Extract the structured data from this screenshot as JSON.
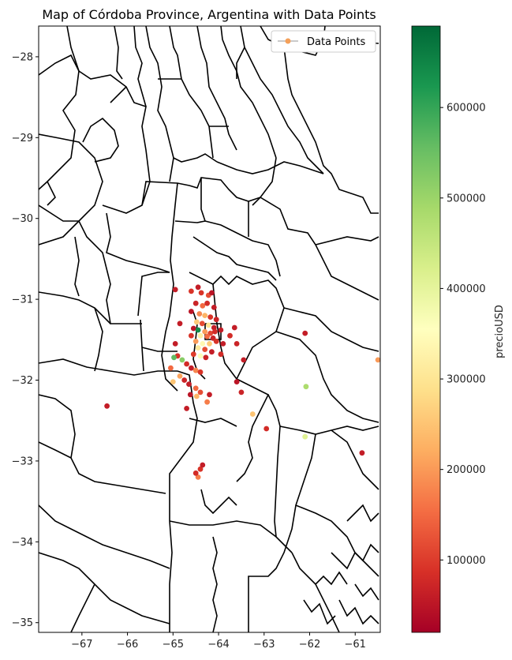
{
  "title": "Map of Córdoba Province, Argentina with Data Points",
  "legend": {
    "label": "Data Points",
    "marker_color": "#f4a05a",
    "placement": "upper right"
  },
  "colorbar": {
    "label": "precioUSD",
    "ticks": [
      "100000",
      "200000",
      "300000",
      "400000",
      "500000",
      "600000"
    ],
    "tick_values": [
      100000,
      200000,
      300000,
      400000,
      500000,
      600000
    ],
    "range": [
      20000,
      690000
    ],
    "colormap": "RdYlGn"
  },
  "axes": {
    "xlim": [
      -67.95,
      -60.45
    ],
    "ylim": [
      -35.12,
      -27.62
    ],
    "xticks": [
      "−67",
      "−66",
      "−65",
      "−64",
      "−63",
      "−62",
      "−61"
    ],
    "xtick_values": [
      -67,
      -66,
      -65,
      -64,
      -63,
      -62,
      -61
    ],
    "yticks": [
      "−28",
      "−29",
      "−30",
      "−31",
      "−32",
      "−33",
      "−34",
      "−35"
    ],
    "ytick_values": [
      -28,
      -29,
      -30,
      -31,
      -32,
      -33,
      -34,
      -35
    ]
  },
  "chart_data": {
    "type": "scatter",
    "title": "Map of Córdoba Province, Argentina with Data Points",
    "color_variable": "precioUSD",
    "points": [
      {
        "x": -64.45,
        "y": -30.85,
        "v": 60000
      },
      {
        "x": -64.38,
        "y": -30.92,
        "v": 90000
      },
      {
        "x": -64.22,
        "y": -30.95,
        "v": 120000
      },
      {
        "x": -64.15,
        "y": -30.92,
        "v": 50000
      },
      {
        "x": -64.5,
        "y": -31.05,
        "v": 70000
      },
      {
        "x": -64.35,
        "y": -31.08,
        "v": 150000
      },
      {
        "x": -64.25,
        "y": -31.05,
        "v": 80000
      },
      {
        "x": -64.1,
        "y": -31.1,
        "v": 60000
      },
      {
        "x": -64.6,
        "y": -31.15,
        "v": 50000
      },
      {
        "x": -64.42,
        "y": -31.18,
        "v": 180000
      },
      {
        "x": -64.3,
        "y": -31.2,
        "v": 230000
      },
      {
        "x": -64.18,
        "y": -31.22,
        "v": 90000
      },
      {
        "x": -64.05,
        "y": -31.25,
        "v": 70000
      },
      {
        "x": -64.48,
        "y": -31.28,
        "v": 260000
      },
      {
        "x": -64.36,
        "y": -31.3,
        "v": 120000
      },
      {
        "x": -64.22,
        "y": -31.32,
        "v": 300000
      },
      {
        "x": -64.1,
        "y": -31.35,
        "v": 60000
      },
      {
        "x": -64.55,
        "y": -31.36,
        "v": 50000
      },
      {
        "x": -64.45,
        "y": -31.38,
        "v": 640000
      },
      {
        "x": -64.3,
        "y": -31.4,
        "v": 200000
      },
      {
        "x": -64.18,
        "y": -31.42,
        "v": 110000
      },
      {
        "x": -64.08,
        "y": -31.4,
        "v": 80000
      },
      {
        "x": -63.95,
        "y": -31.38,
        "v": 60000
      },
      {
        "x": -64.6,
        "y": -31.45,
        "v": 90000
      },
      {
        "x": -64.4,
        "y": -31.45,
        "v": 320000
      },
      {
        "x": -64.25,
        "y": -31.46,
        "v": 150000
      },
      {
        "x": -64.12,
        "y": -31.48,
        "v": 70000
      },
      {
        "x": -64.5,
        "y": -31.52,
        "v": 200000
      },
      {
        "x": -64.35,
        "y": -31.55,
        "v": 340000
      },
      {
        "x": -64.2,
        "y": -31.55,
        "v": 260000
      },
      {
        "x": -64.05,
        "y": -31.52,
        "v": 90000
      },
      {
        "x": -63.9,
        "y": -31.55,
        "v": 60000
      },
      {
        "x": -64.45,
        "y": -31.6,
        "v": 310000
      },
      {
        "x": -64.3,
        "y": -31.62,
        "v": 120000
      },
      {
        "x": -64.15,
        "y": -31.65,
        "v": 60000
      },
      {
        "x": -63.95,
        "y": -31.68,
        "v": 80000
      },
      {
        "x": -64.55,
        "y": -31.68,
        "v": 100000
      },
      {
        "x": -64.4,
        "y": -31.7,
        "v": 360000
      },
      {
        "x": -64.28,
        "y": -31.72,
        "v": 70000
      },
      {
        "x": -64.95,
        "y": -31.55,
        "v": 60000
      },
      {
        "x": -64.9,
        "y": -31.7,
        "v": 90000
      },
      {
        "x": -64.8,
        "y": -31.75,
        "v": 520000
      },
      {
        "x": -64.7,
        "y": -31.8,
        "v": 80000
      },
      {
        "x": -64.6,
        "y": -31.85,
        "v": 60000
      },
      {
        "x": -64.5,
        "y": -31.88,
        "v": 180000
      },
      {
        "x": -64.4,
        "y": -31.9,
        "v": 90000
      },
      {
        "x": -64.85,
        "y": -31.95,
        "v": 210000
      },
      {
        "x": -64.75,
        "y": -32.0,
        "v": 70000
      },
      {
        "x": -64.65,
        "y": -32.05,
        "v": 60000
      },
      {
        "x": -64.5,
        "y": -32.1,
        "v": 150000
      },
      {
        "x": -64.4,
        "y": -32.15,
        "v": 120000
      },
      {
        "x": -64.62,
        "y": -32.18,
        "v": 50000
      },
      {
        "x": -64.48,
        "y": -32.2,
        "v": 230000
      },
      {
        "x": -64.2,
        "y": -32.18,
        "v": 60000
      },
      {
        "x": -64.7,
        "y": -32.35,
        "v": 60000
      },
      {
        "x": -64.25,
        "y": -32.27,
        "v": 170000
      },
      {
        "x": -63.65,
        "y": -31.35,
        "v": 60000
      },
      {
        "x": -63.75,
        "y": -31.45,
        "v": 80000
      },
      {
        "x": -63.6,
        "y": -31.55,
        "v": 70000
      },
      {
        "x": -63.45,
        "y": -31.75,
        "v": 60000
      },
      {
        "x": -63.6,
        "y": -32.02,
        "v": 50000
      },
      {
        "x": -63.5,
        "y": -32.15,
        "v": 70000
      },
      {
        "x": -63.25,
        "y": -32.42,
        "v": 250000
      },
      {
        "x": -62.95,
        "y": -32.6,
        "v": 80000
      },
      {
        "x": -62.1,
        "y": -31.42,
        "v": 60000
      },
      {
        "x": -62.08,
        "y": -32.08,
        "v": 480000
      },
      {
        "x": -62.1,
        "y": -32.7,
        "v": 410000
      },
      {
        "x": -60.85,
        "y": -32.9,
        "v": 60000
      },
      {
        "x": -60.5,
        "y": -31.75,
        "v": 200000
      },
      {
        "x": -66.45,
        "y": -32.32,
        "v": 60000
      },
      {
        "x": -64.4,
        "y": -33.1,
        "v": 90000
      },
      {
        "x": -64.35,
        "y": -33.05,
        "v": 60000
      },
      {
        "x": -64.45,
        "y": -33.2,
        "v": 170000
      },
      {
        "x": -64.5,
        "y": -33.15,
        "v": 80000
      },
      {
        "x": -64.85,
        "y": -31.3,
        "v": 60000
      },
      {
        "x": -64.6,
        "y": -30.9,
        "v": 90000
      },
      {
        "x": -64.95,
        "y": -30.88,
        "v": 60000
      },
      {
        "x": -65.05,
        "y": -31.85,
        "v": 150000
      },
      {
        "x": -65.0,
        "y": -32.02,
        "v": 250000
      },
      {
        "x": -64.98,
        "y": -31.72,
        "v": 560000
      }
    ]
  }
}
